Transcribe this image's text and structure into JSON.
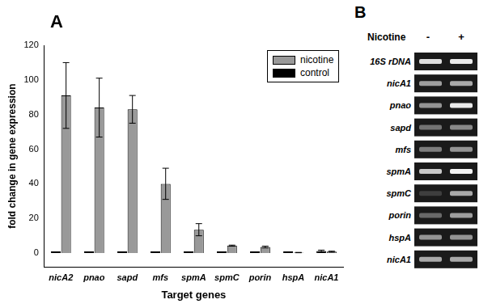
{
  "chart_data": {
    "type": "bar",
    "panel": "A",
    "x_label": "Target genes",
    "y_label": "fold change in gene expression",
    "categories": [
      "nicA2",
      "pnao",
      "sapd",
      "mfs",
      "spmA",
      "spmC",
      "porin",
      "hspA",
      "nicA1"
    ],
    "series": [
      {
        "name": "nicotine",
        "color": "#999999",
        "values": [
          91,
          84,
          83,
          40,
          13.5,
          4.3,
          3.5,
          0.3,
          0.8
        ],
        "errors": [
          19,
          17,
          8,
          9,
          3.5,
          0.3,
          0.5,
          0.1,
          0.3
        ]
      },
      {
        "name": "control",
        "color": "#000000",
        "values": [
          1,
          1,
          1,
          1,
          1,
          1,
          1,
          1,
          1.2
        ],
        "errors": [
          0,
          0,
          0,
          0,
          0,
          0,
          0,
          0,
          0.5
        ]
      }
    ],
    "ylim": [
      -8,
      120
    ],
    "yticks": [
      0,
      20,
      40,
      60,
      80,
      100,
      120
    ],
    "grid": false,
    "legend": "upper right"
  },
  "gel_panel": {
    "panel": "B",
    "header": "Nicotine",
    "lanes": [
      "-",
      "+"
    ],
    "rows": [
      "16S rDNA",
      "nicA1",
      "pnao",
      "sapd",
      "mfs",
      "spmA",
      "spmC",
      "porin",
      "hspA",
      "nicA1"
    ]
  }
}
